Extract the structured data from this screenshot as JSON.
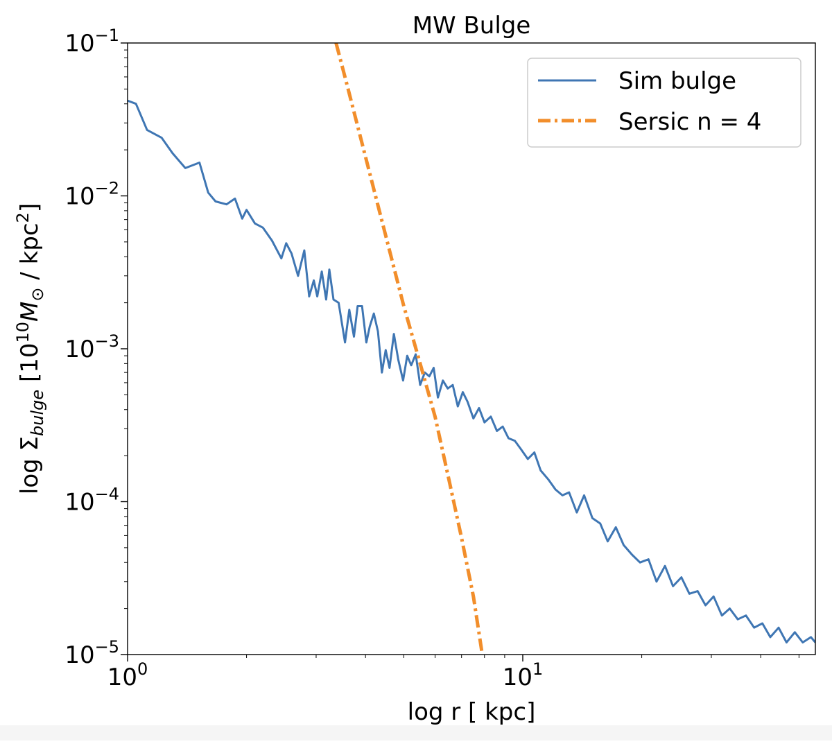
{
  "chart_data": {
    "type": "line",
    "title": "MW Bulge",
    "xlabel": "log r [ kpc]",
    "ylabel_parts": {
      "prefix": "log Σ",
      "subscript": "bulge",
      "open": " [10",
      "exp": "10",
      "mass": "M",
      "sun_sub": "⊙",
      "mid": "  / kpc",
      "sq": "2",
      "close": "]"
    },
    "xscale": "log",
    "yscale": "log",
    "xlim": [
      1,
      55
    ],
    "ylim": [
      1e-05,
      0.1
    ],
    "x_ticks": [
      {
        "value": 1,
        "base": "10",
        "exp": "0"
      },
      {
        "value": 10,
        "base": "10",
        "exp": "1"
      }
    ],
    "y_ticks": [
      {
        "value": 0.1,
        "base": "10",
        "exp": "−1"
      },
      {
        "value": 0.01,
        "base": "10",
        "exp": "−2"
      },
      {
        "value": 0.001,
        "base": "10",
        "exp": "−3"
      },
      {
        "value": 0.0001,
        "base": "10",
        "exp": "−4"
      },
      {
        "value": 1e-05,
        "base": "10",
        "exp": "−5"
      }
    ],
    "grid": false,
    "legend_position": "top-right",
    "series": [
      {
        "name": "Sim bulge",
        "color": "#3f76b3",
        "style": "solid",
        "x": [
          1.0,
          1.05,
          1.12,
          1.22,
          1.3,
          1.4,
          1.52,
          1.6,
          1.67,
          1.78,
          1.87,
          1.95,
          2.0,
          2.1,
          2.2,
          2.32,
          2.45,
          2.52,
          2.6,
          2.7,
          2.8,
          2.88,
          2.96,
          3.02,
          3.1,
          3.18,
          3.24,
          3.32,
          3.42,
          3.55,
          3.64,
          3.74,
          3.82,
          3.92,
          4.02,
          4.1,
          4.2,
          4.3,
          4.4,
          4.5,
          4.6,
          4.72,
          4.84,
          4.98,
          5.1,
          5.22,
          5.36,
          5.5,
          5.65,
          5.8,
          5.95,
          6.1,
          6.28,
          6.46,
          6.65,
          6.85,
          7.05,
          7.25,
          7.5,
          7.75,
          8.0,
          8.3,
          8.6,
          8.9,
          9.2,
          9.55,
          9.9,
          10.3,
          10.7,
          11.1,
          11.6,
          12.1,
          12.6,
          13.1,
          13.7,
          14.3,
          15.0,
          15.7,
          16.4,
          17.2,
          18.0,
          18.9,
          19.8,
          20.8,
          21.8,
          22.9,
          24.0,
          25.2,
          26.4,
          27.7,
          29.0,
          30.4,
          31.9,
          33.4,
          35.0,
          36.7,
          38.5,
          40.4,
          42.3,
          44.4,
          46.5,
          48.8,
          51.1,
          53.6,
          55.0
        ],
        "y": [
          0.042,
          0.04,
          0.027,
          0.024,
          0.019,
          0.0152,
          0.0165,
          0.0105,
          0.0092,
          0.0088,
          0.0096,
          0.0071,
          0.0081,
          0.0066,
          0.0062,
          0.0051,
          0.0039,
          0.0049,
          0.0042,
          0.003,
          0.0044,
          0.0022,
          0.0028,
          0.0022,
          0.0032,
          0.0021,
          0.0033,
          0.0021,
          0.002,
          0.0011,
          0.0018,
          0.0012,
          0.0019,
          0.0019,
          0.0011,
          0.0014,
          0.0017,
          0.0013,
          0.0007,
          0.00098,
          0.00075,
          0.00125,
          0.00085,
          0.00062,
          0.0009,
          0.00078,
          0.00092,
          0.00058,
          0.0007,
          0.00066,
          0.00075,
          0.00048,
          0.00062,
          0.00055,
          0.00058,
          0.00042,
          0.00052,
          0.00045,
          0.00035,
          0.00041,
          0.00033,
          0.00036,
          0.00029,
          0.00031,
          0.00026,
          0.00025,
          0.00022,
          0.00019,
          0.00021,
          0.00016,
          0.00014,
          0.00012,
          0.00011,
          0.000115,
          8.5e-05,
          0.00011,
          7.8e-05,
          7.2e-05,
          5.5e-05,
          6.8e-05,
          5.2e-05,
          4.5e-05,
          4e-05,
          4.2e-05,
          3e-05,
          3.8e-05,
          2.8e-05,
          3.2e-05,
          2.5e-05,
          2.6e-05,
          2.1e-05,
          2.4e-05,
          1.8e-05,
          2e-05,
          1.7e-05,
          1.8e-05,
          1.5e-05,
          1.6e-05,
          1.3e-05,
          1.5e-05,
          1.2e-05,
          1.4e-05,
          1.2e-05,
          1.3e-05,
          1.2e-05
        ]
      },
      {
        "name": "Sersic n = 4",
        "color": "#f28e2b",
        "style": "dashdot",
        "x": [
          3.37,
          3.6,
          4.0,
          4.5,
          5.0,
          5.5,
          6.0,
          6.5,
          7.0,
          7.5,
          7.9
        ],
        "y": [
          0.1,
          0.052,
          0.018,
          0.0055,
          0.0019,
          0.0008,
          0.00036,
          0.00014,
          5.8e-05,
          2.4e-05,
          1e-05
        ]
      }
    ]
  }
}
